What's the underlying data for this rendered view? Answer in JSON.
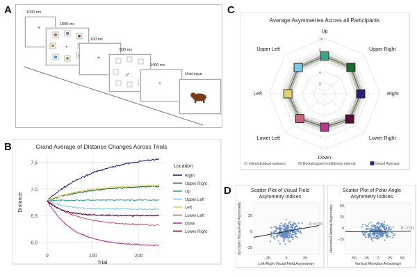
{
  "panels": {
    "a": "A",
    "b": "B",
    "c": "C",
    "d": "D"
  },
  "panel_a": {
    "timings": [
      "1000 ms",
      "1000 ms",
      "100 ms",
      "500 ms",
      "1400 ms"
    ],
    "fixation": "+",
    "response_text": "Until input"
  },
  "chart_data": [
    {
      "id": "B",
      "type": "line",
      "title": "Grand Average of Distance Changes Across Trials",
      "xlabel": "Trial",
      "ylabel": "Distance",
      "xlim": [
        -15,
        255
      ],
      "ylim": [
        5.85,
        7.65
      ],
      "xticks": [
        0,
        100,
        200
      ],
      "yticks": [
        6.0,
        6.5,
        7.0,
        7.5
      ],
      "legend_title": "Location",
      "series": [
        {
          "name": "Right",
          "color": "#2b1f7a",
          "end": 7.56,
          "rate": 0.009
        },
        {
          "name": "Upper Right",
          "color": "#1c6b2f",
          "end": 7.05,
          "rate": 0.011
        },
        {
          "name": "Up",
          "color": "#3aa389",
          "end": 6.79,
          "rate": 0.02
        },
        {
          "name": "Upper Left",
          "color": "#7ec8e3",
          "end": 6.62,
          "rate": 0.025
        },
        {
          "name": "Left",
          "color": "#e0d26a",
          "end": 7.07,
          "rate": 0.012
        },
        {
          "name": "Lower Left",
          "color": "#c8627d",
          "end": 6.32,
          "rate": 0.015
        },
        {
          "name": "Down",
          "color": "#b4398f",
          "end": 5.94,
          "rate": 0.018
        },
        {
          "name": "Lower Right",
          "color": "#5a0c3f",
          "end": 6.5,
          "rate": 0.03
        }
      ],
      "start": 6.78
    },
    {
      "id": "C",
      "type": "radar",
      "title": "Average Asymmetries Across all Participants",
      "axes": [
        "Up",
        "Upper Right",
        "Right",
        "Lower Right",
        "Down",
        "Lower Left",
        "Left",
        "Upper Left"
      ],
      "values": [
        6.8,
        6.7,
        6.5,
        6.4,
        6.0,
        6.3,
        6.6,
        6.7
      ],
      "marker_colors": [
        "#3aa389",
        "#1c6b2f",
        "#2b1f7a",
        "#5a0c3f",
        "#b4398f",
        "#c8627d",
        "#e0d26a",
        "#7ec8e3"
      ],
      "rlim": [
        0,
        10
      ],
      "radial_ticks": [
        "10",
        "8",
        "6",
        "4",
        "2"
      ],
      "legend": [
        "Interindividual variance",
        "Bootstrapped confidence interval",
        "Grand Average"
      ]
    },
    {
      "id": "D1",
      "type": "scatter",
      "title": "Scatter Plot of Visual Field Asymmetry Indices",
      "xlabel": "Left-Right Visual Field Asymmetry",
      "ylabel": "Up-Down Visual Field Asymmetry",
      "xticks": [
        "-25",
        "0",
        "25"
      ],
      "yticks": [
        "25",
        "0",
        "-25"
      ],
      "annotation": "R = 0.16"
    },
    {
      "id": "D2",
      "type": "scatter",
      "title": "Scatter Plot of Polar Angle Asymmetry Indices",
      "xlabel": "Vertical Meridian Anisotropy",
      "ylabel": "Horizontal-Vertical Asymmetry",
      "xticks": [
        "-50",
        "-25",
        "0",
        "25",
        "50"
      ],
      "yticks": [
        "50",
        "25",
        "0",
        "-25"
      ],
      "annotation": "R = 0.01"
    }
  ]
}
